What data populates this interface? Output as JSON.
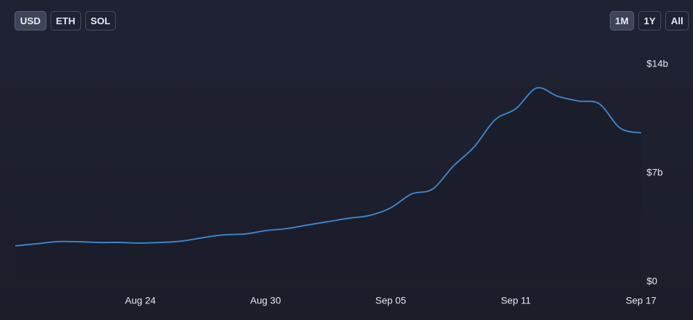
{
  "controls": {
    "currencies": [
      "USD",
      "ETH",
      "SOL"
    ],
    "ranges": [
      "1M",
      "1Y",
      "All"
    ]
  },
  "chart_data": {
    "type": "line",
    "categories": [
      null,
      null,
      null,
      null,
      null,
      null,
      "Aug 24",
      null,
      null,
      null,
      null,
      null,
      "Aug 30",
      null,
      null,
      null,
      null,
      null,
      "Sep 05",
      null,
      null,
      null,
      null,
      null,
      "Sep 11",
      null,
      null,
      null,
      null,
      null,
      "Sep 17"
    ],
    "series": [
      {
        "color": "#3b87cc",
        "values": [
          2.32,
          2.45,
          2.59,
          2.59,
          2.54,
          2.54,
          2.5,
          2.54,
          2.63,
          2.85,
          3.03,
          3.08,
          3.3,
          3.43,
          3.66,
          3.88,
          4.1,
          4.28,
          4.77,
          5.66,
          5.97,
          7.45,
          8.69,
          10.43,
          11.15,
          12.48,
          11.95,
          11.64,
          11.46,
          9.9,
          9.59
        ]
      }
    ],
    "ylim": [
      0,
      14
    ],
    "yticks": [
      {
        "value": 0,
        "label": "$0"
      },
      {
        "value": 7,
        "label": "$7b"
      },
      {
        "value": 14,
        "label": "$14b"
      }
    ]
  }
}
